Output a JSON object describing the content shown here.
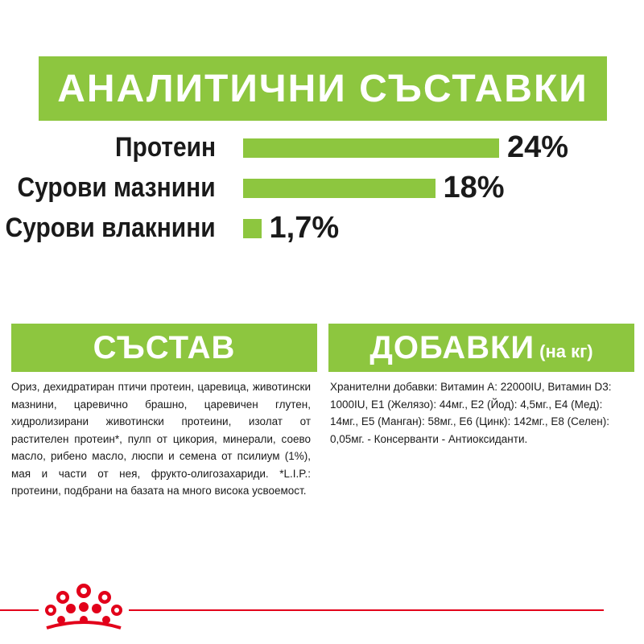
{
  "analytics": {
    "title": "АНАЛИТИЧНИ СЪСТАВКИ",
    "bar_color": "#8dc63f",
    "rows": [
      {
        "label": "Протеин",
        "value": "24%",
        "percent": 24
      },
      {
        "label": "Сурови мазнини",
        "value": "18%",
        "percent": 18
      },
      {
        "label": "Сурови влакнини",
        "value": "1,7%",
        "percent": 1.7
      }
    ]
  },
  "composition": {
    "title": "СЪСТАВ",
    "text": "Ориз, дехидратиран птичи протеин, царевица, животински мазнини, царевично брашно, царевичен глутен, хидролизирани животински протеини, изолат от растителен протеин*, пулп от цикория, минерали, соево масло, рибено масло, люспи и семена от псилиум (1%), мая и части от нея, фрукто-олигозахариди. *L.I.P.: протеини, подбрани на базата на много висока усвоемост."
  },
  "additives": {
    "title": "ДОБАВКИ",
    "unit": "(на кг)",
    "text": "Хранителни добавки: Витамин А: 22000IU, Витамин D3: 1000IU, Е1 (Желязо): 44мг., Е2 (Йод): 4,5мг., Е4 (Мед): 14мг., Е5 (Манган): 58мг., Е6 (Цинк): 142мг., Е8 (Селен): 0,05мг. - Консерванти - Антиоксиданти."
  },
  "brand": {
    "logo_icon": "royal-canin-crown-icon",
    "accent_color": "#e2001a"
  }
}
